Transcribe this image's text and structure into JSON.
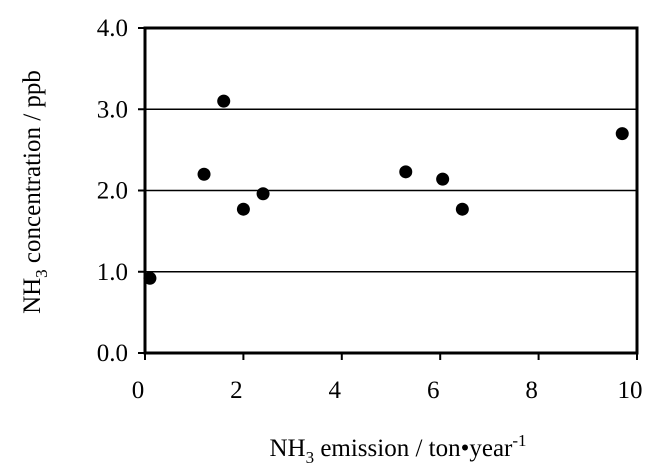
{
  "chart_data": {
    "type": "scatter",
    "xlabel": {
      "base": "NH",
      "sub": "3",
      "main": " emission / ton•year",
      "sup": "-1"
    },
    "ylabel": {
      "base": "NH",
      "sub": "3",
      "main": " concentration / ppb"
    },
    "xlim": [
      0,
      10
    ],
    "ylim": [
      0,
      4
    ],
    "x_ticks": [
      0,
      2,
      4,
      6,
      8,
      10
    ],
    "y_ticks": [
      0,
      1,
      2,
      3,
      4
    ],
    "x_tick_labels": [
      "0",
      "2",
      "4",
      "6",
      "8",
      "10"
    ],
    "y_tick_labels": [
      "0.0",
      "1.0",
      "2.0",
      "3.0",
      "4.0"
    ],
    "grid": "horizontal",
    "colors": {
      "marker": "#000000",
      "grid": "#000000",
      "frame": "#000000",
      "background": "#ffffff"
    },
    "series": [
      {
        "points": [
          {
            "x": 0.1,
            "y": 0.92
          },
          {
            "x": 1.2,
            "y": 2.2
          },
          {
            "x": 1.6,
            "y": 3.1
          },
          {
            "x": 2.0,
            "y": 1.77
          },
          {
            "x": 2.4,
            "y": 1.96
          },
          {
            "x": 5.3,
            "y": 2.23
          },
          {
            "x": 6.05,
            "y": 2.14
          },
          {
            "x": 6.45,
            "y": 1.77
          },
          {
            "x": 9.7,
            "y": 2.7
          }
        ]
      }
    ]
  }
}
